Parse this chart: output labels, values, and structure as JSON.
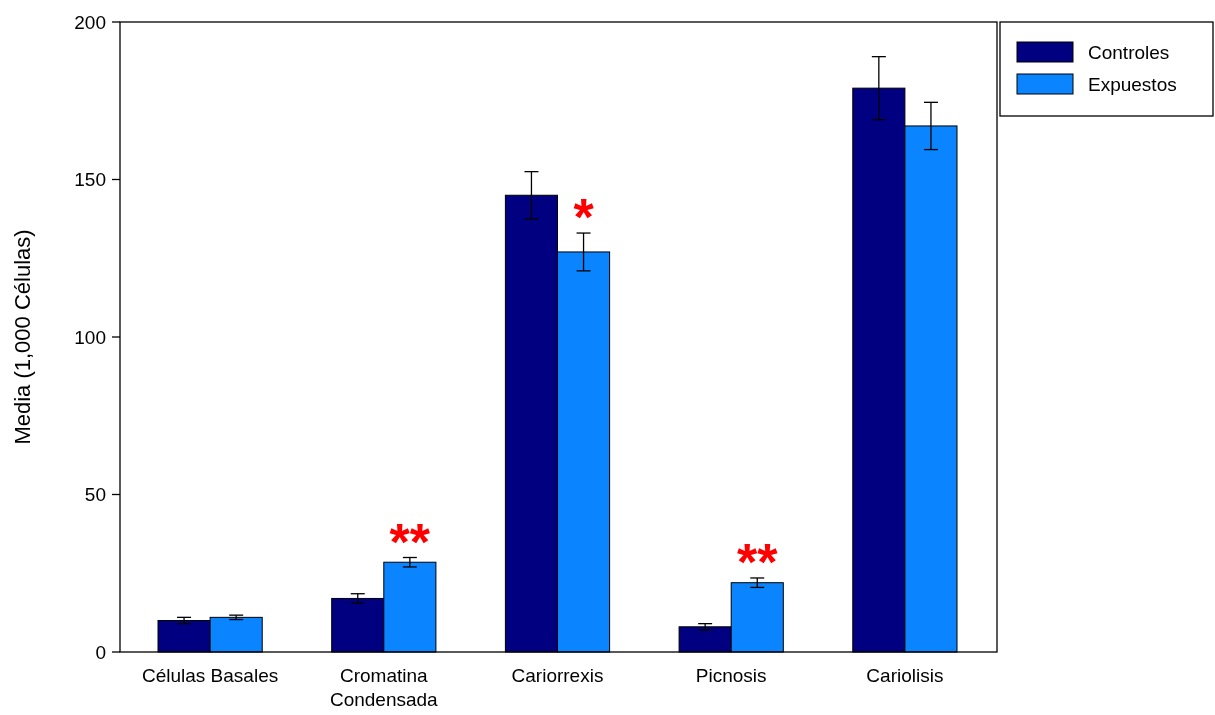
{
  "chart_data": {
    "type": "bar",
    "ylabel": "Media (1,000 Células)",
    "categories": [
      "Células Basales",
      "Cromatina Condensada",
      "Cariorrexis",
      "Picnosis",
      "Cariolisis"
    ],
    "series": [
      {
        "name": "Controles",
        "color": "#000080",
        "values": [
          10,
          17,
          145,
          8,
          179
        ],
        "errors": [
          1,
          1.5,
          7.5,
          1,
          10
        ]
      },
      {
        "name": "Expuestos",
        "color": "#0a85ff",
        "values": [
          11,
          28.5,
          127,
          22,
          167
        ],
        "errors": [
          0.7,
          1.5,
          6,
          1.5,
          7.5
        ]
      }
    ],
    "ylim": [
      0,
      200
    ],
    "yticks": [
      0,
      50,
      100,
      150,
      200
    ],
    "legend": "top right",
    "grid": false,
    "annotations": [
      {
        "text": "**",
        "x": "Cromatina Condensada",
        "y": 30
      },
      {
        "text": "*",
        "x": "Cariorrexis",
        "y": 133
      },
      {
        "text": "**",
        "x": "Picnosis",
        "y": 23.5
      }
    ]
  }
}
